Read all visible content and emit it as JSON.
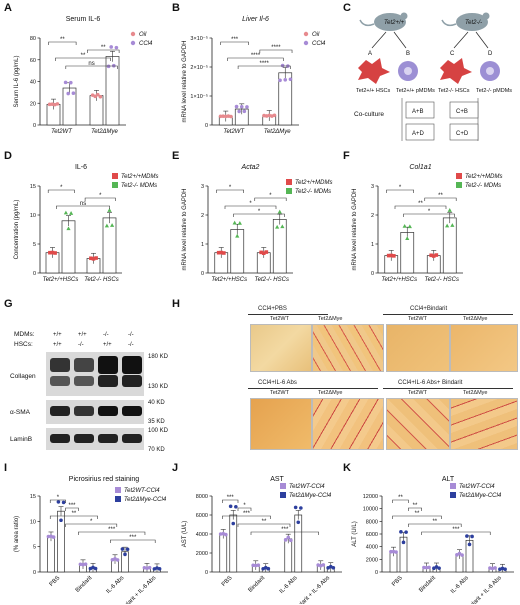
{
  "panels": {
    "A": {
      "letter": "A",
      "title": "Serum IL-6",
      "ylabel": "Serum IL-6 (pg/mL)",
      "yticks": [
        "0",
        "20",
        "40",
        "60",
        "80"
      ],
      "groups": [
        "Tet2WT",
        "Tet2ΔMye"
      ],
      "legend": [
        "Oil",
        "CCl4"
      ],
      "sig": [
        "**",
        "**",
        "**",
        "ns"
      ]
    },
    "B": {
      "letter": "B",
      "title": "Liver Il-6",
      "ylabel": "mRNA level relative to GAPDH",
      "yticks": [
        "0",
        "1×10⁻⁵",
        "2×10⁻⁵",
        "3×10⁻⁵"
      ],
      "groups": [
        "Tet2WT",
        "Tet2ΔMye"
      ],
      "legend": [
        "Oil",
        "CCl4"
      ],
      "sig": [
        "***",
        "****",
        "****",
        "****"
      ]
    },
    "C": {
      "letter": "C",
      "mouse1": "Tet2+/+",
      "mouse2": "Tet2-/-",
      "labels": [
        "A",
        "B",
        "C",
        "D"
      ],
      "cells": [
        "Tet2+/+ HSCs",
        "Tet2+/+ pMDMs",
        "Tet2-/- HSCs",
        "Tet2-/- pMDMs"
      ],
      "coculture": "Co-culture",
      "combos": [
        "A+B",
        "A+D",
        "C+B",
        "C+D"
      ]
    },
    "D": {
      "letter": "D",
      "title": "IL-6",
      "ylabel": "Concentration (pg/mL)",
      "yticks": [
        "0",
        "5",
        "10",
        "15"
      ],
      "groups": [
        "Tet2+/+HSCs",
        "Tet2-/- HSCs"
      ],
      "legend": [
        "Tet2+/+MDMs",
        "Tet2-/- MDMs"
      ],
      "sig": [
        "*",
        "*",
        "ns"
      ]
    },
    "E": {
      "letter": "E",
      "title": "Acta2",
      "ylabel": "mRNA level relative to GAPDH",
      "yticks": [
        "0",
        "1",
        "2",
        "3"
      ],
      "groups": [
        "Tet2+/+HSCs",
        "Tet2-/- HSCs"
      ],
      "legend": [
        "Tet2+/+MDMs",
        "Tet2-/- MDMs"
      ],
      "sig": [
        "*",
        "*",
        "*",
        "*"
      ]
    },
    "F": {
      "letter": "F",
      "title": "Col1a1",
      "ylabel": "mRNA level relative to GAPDH",
      "yticks": [
        "0",
        "1",
        "2",
        "3"
      ],
      "groups": [
        "Tet2+/+HSCs",
        "Tet2-/- HSCs"
      ],
      "legend": [
        "Tet2+/+MDMs",
        "Tet2-/- MDMs"
      ],
      "sig": [
        "*",
        "**",
        "**",
        "*"
      ]
    },
    "G": {
      "letter": "G",
      "rowlabels": [
        "MDMs:",
        "HSCs:"
      ],
      "mdms": [
        "+/+",
        "+/+",
        "-/-",
        "-/-"
      ],
      "hscs": [
        "+/+",
        "-/-",
        "+/+",
        "-/-"
      ],
      "blots": [
        "Collagen",
        "α-SMA",
        "LaminB"
      ],
      "kd": [
        "180 KD",
        "130 KD",
        "40 KD",
        "35 KD",
        "100 KD",
        "70 KD"
      ]
    },
    "H": {
      "letter": "H",
      "headers": [
        "CCl4+PBS",
        "CCl4+Bindarit",
        "CCl4+IL-6 Abs",
        "CCl4+IL-6 Abs+ Bindarit"
      ],
      "genos": [
        "Tet2WT",
        "Tet2ΔMye"
      ]
    },
    "I": {
      "letter": "I",
      "title": "Picrosirius red staining",
      "ylabel": "(% area ratio)",
      "yticks": [
        "0",
        "5",
        "10",
        "15"
      ],
      "cats": [
        "PBS",
        "Bindarit",
        "IL-6 Abs",
        "Bindarit + IL-6 Abs"
      ],
      "legend": [
        "Tet2WT-CCl4",
        "Tet2ΔMye-CCl4"
      ],
      "sig": [
        "*",
        "***",
        "**",
        "*",
        "***",
        "***",
        "ns",
        "ns",
        "ns",
        "ns"
      ]
    },
    "J": {
      "letter": "J",
      "title": "AST",
      "ylabel": "AST (U/L)",
      "yticks": [
        "0",
        "2000",
        "4000",
        "6000",
        "8000"
      ],
      "cats": [
        "PBS",
        "Bindarit",
        "IL-6 Abs",
        "Bindarit + IL-6 Abs"
      ],
      "legend": [
        "Tet2WT-CCl4",
        "Tet2ΔMye-CCl4"
      ],
      "sig": [
        "***",
        "*",
        "***",
        "**",
        "***",
        "*",
        "***",
        "ns",
        "ns"
      ]
    },
    "K": {
      "letter": "K",
      "title": "ALT",
      "ylabel": "ALT (U/L)",
      "yticks": [
        "0",
        "2000",
        "4000",
        "6000",
        "8000",
        "10000",
        "12000"
      ],
      "cats": [
        "PBS",
        "Bindarit",
        "IL-6 Abs",
        "Bindarit + IL-6 Abs"
      ],
      "legend": [
        "Tet2WT-CCl4",
        "Tet2ΔMye-CCl4"
      ],
      "sig": [
        "**",
        "**",
        "**",
        "**",
        "***",
        "***",
        "ns"
      ]
    }
  },
  "colors": {
    "oil": "#e78a8e",
    "ccl4": "#a78bd6",
    "red": "#e04a4a",
    "green": "#55b655",
    "wt": "#a78bd6",
    "mye": "#2d3f9e"
  },
  "chart_data": [
    {
      "type": "bar",
      "panel": "A",
      "title": "Serum IL-6",
      "ylabel": "Serum IL-6 (pg/mL)",
      "ylim": [
        0,
        80
      ],
      "categories": [
        "Tet2WT",
        "Tet2ΔMye"
      ],
      "series": [
        {
          "name": "Oil",
          "values": [
            19,
            27
          ]
        },
        {
          "name": "CCl4",
          "values": [
            34,
            63
          ]
        }
      ]
    },
    {
      "type": "bar",
      "panel": "B",
      "title": "Liver Il-6",
      "ylabel": "mRNA level relative to GAPDH",
      "ylim": [
        0,
        3
      ],
      "unit": "×10⁻⁵",
      "categories": [
        "Tet2WT",
        "Tet2ΔMye"
      ],
      "series": [
        {
          "name": "Oil",
          "values": [
            0.3,
            0.32
          ]
        },
        {
          "name": "CCl4",
          "values": [
            0.55,
            1.8
          ]
        }
      ]
    },
    {
      "type": "bar",
      "panel": "D",
      "title": "IL-6",
      "ylabel": "Concentration (pg/mL)",
      "ylim": [
        0,
        15
      ],
      "categories": [
        "Tet2+/+HSCs",
        "Tet2-/- HSCs"
      ],
      "series": [
        {
          "name": "Tet2+/+MDMs",
          "values": [
            3.5,
            2.5
          ]
        },
        {
          "name": "Tet2-/- MDMs",
          "values": [
            9,
            9.5
          ]
        }
      ]
    },
    {
      "type": "bar",
      "panel": "E",
      "title": "Acta2",
      "ylabel": "mRNA level relative to GAPDH",
      "ylim": [
        0,
        3
      ],
      "categories": [
        "Tet2+/+HSCs",
        "Tet2-/- HSCs"
      ],
      "series": [
        {
          "name": "Tet2+/+MDMs",
          "values": [
            0.7,
            0.7
          ]
        },
        {
          "name": "Tet2-/- MDMs",
          "values": [
            1.5,
            1.85
          ]
        }
      ]
    },
    {
      "type": "bar",
      "panel": "F",
      "title": "Col1a1",
      "ylabel": "mRNA level relative to GAPDH",
      "ylim": [
        0,
        3
      ],
      "categories": [
        "Tet2+/+HSCs",
        "Tet2-/- HSCs"
      ],
      "series": [
        {
          "name": "Tet2+/+MDMs",
          "values": [
            0.6,
            0.6
          ]
        },
        {
          "name": "Tet2-/- MDMs",
          "values": [
            1.4,
            1.9
          ]
        }
      ]
    },
    {
      "type": "bar",
      "panel": "I",
      "title": "Picrosirius red staining",
      "ylabel": "(% area ratio)",
      "ylim": [
        0,
        15
      ],
      "categories": [
        "PBS",
        "Bindarit",
        "IL-6 Abs",
        "Bindarit + IL-6 Abs"
      ],
      "series": [
        {
          "name": "Tet2WT-CCl4",
          "values": [
            7,
            1.5,
            2.5,
            0.8
          ]
        },
        {
          "name": "Tet2ΔMye-CCl4",
          "values": [
            12,
            0.8,
            4,
            0.7
          ]
        }
      ]
    },
    {
      "type": "bar",
      "panel": "J",
      "title": "AST",
      "ylabel": "AST (U/L)",
      "ylim": [
        0,
        8000
      ],
      "categories": [
        "PBS",
        "Bindarit",
        "IL-6 Abs",
        "Bindarit + IL-6 Abs"
      ],
      "series": [
        {
          "name": "Tet2WT-CCl4",
          "values": [
            4000,
            700,
            3500,
            700
          ]
        },
        {
          "name": "Tet2ΔMye-CCl4",
          "values": [
            6000,
            400,
            6000,
            500
          ]
        }
      ]
    },
    {
      "type": "bar",
      "panel": "K",
      "title": "ALT",
      "ylabel": "ALT (U/L)",
      "ylim": [
        0,
        12000
      ],
      "categories": [
        "PBS",
        "Bindarit",
        "IL-6 Abs",
        "Bindarit + IL-6 Abs"
      ],
      "series": [
        {
          "name": "Tet2WT-CCl4",
          "values": [
            3200,
            700,
            2800,
            600
          ]
        },
        {
          "name": "Tet2ΔMye-CCl4",
          "values": [
            5500,
            700,
            5000,
            500
          ]
        }
      ]
    }
  ]
}
